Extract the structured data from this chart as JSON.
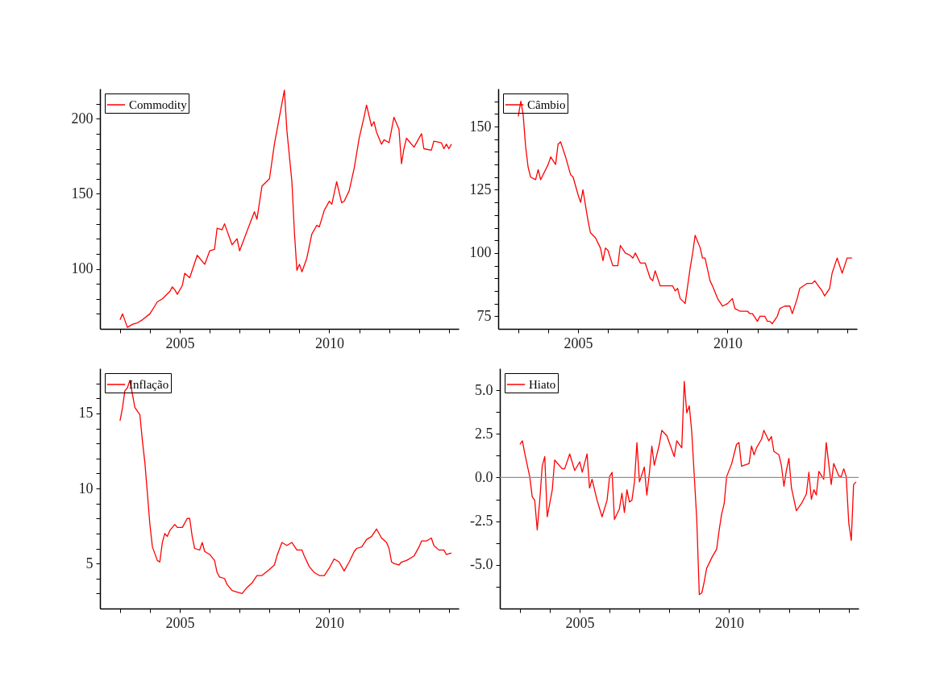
{
  "chart_data": [
    {
      "type": "line",
      "legend": "top left",
      "xlim": [
        "2002-05",
        "2014-05"
      ],
      "ylim": [
        60,
        220
      ],
      "xticks": [
        {
          "value": "2003",
          "label": null
        },
        {
          "value": "2004",
          "label": null
        },
        "2005",
        {
          "value": "2006",
          "label": null
        },
        {
          "value": "2007",
          "label": null
        },
        {
          "value": "2008",
          "label": null
        },
        {
          "value": "2009",
          "label": null
        },
        "2010",
        {
          "value": "2011",
          "label": null
        },
        {
          "value": "2012",
          "label": null
        },
        {
          "value": "2013",
          "label": null
        },
        {
          "value": "2014",
          "label": null
        }
      ],
      "yticks": [
        {
          "value": 70,
          "label": null
        },
        {
          "value": 80,
          "label": null
        },
        {
          "value": 90,
          "label": null
        },
        100,
        {
          "value": 110,
          "label": null
        },
        {
          "value": 120,
          "label": null
        },
        {
          "value": 130,
          "label": null
        },
        {
          "value": 140,
          "label": null
        },
        150,
        {
          "value": 160,
          "label": null
        },
        {
          "value": 170,
          "label": null
        },
        {
          "value": 180,
          "label": null
        },
        {
          "value": 190,
          "label": null
        },
        200,
        {
          "value": 210,
          "label": null
        }
      ],
      "x": [
        "2003-01",
        "2003-02",
        "2003-04",
        "2003-06",
        "2003-08",
        "2003-10",
        "2004-01",
        "2004-04",
        "2004-06",
        "2004-09",
        "2004-10",
        "2004-11",
        "2004-12",
        "2005-02",
        "2005-03",
        "2005-05",
        "2005-08",
        "2005-11",
        "2006-01",
        "2006-03",
        "2006-04",
        "2006-06",
        "2006-07",
        "2006-10",
        "2006-12",
        "2007-01",
        "2007-04",
        "2007-07",
        "2007-08",
        "2007-10",
        "2008-01",
        "2008-03",
        "2008-05",
        "2008-07",
        "2008-08",
        "2008-10",
        "2008-11",
        "2008-12",
        "2009-01",
        "2009-02",
        "2009-04",
        "2009-06",
        "2009-08",
        "2009-09",
        "2009-11",
        "2010-01",
        "2010-02",
        "2010-04",
        "2010-06",
        "2010-07",
        "2010-09",
        "2010-11",
        "2011-01",
        "2011-03",
        "2011-04",
        "2011-06",
        "2011-07",
        "2011-08",
        "2011-10",
        "2011-11",
        "2012-01",
        "2012-03",
        "2012-05",
        "2012-06",
        "2012-07",
        "2012-08",
        "2012-11",
        "2013-02",
        "2013-03",
        "2013-06",
        "2013-07",
        "2013-10",
        "2013-11",
        "2013-12",
        "2014-01",
        "2014-02"
      ],
      "series": [
        {
          "name": "Commodity",
          "color": "#ff0000",
          "values": [
            66,
            70,
            61,
            63,
            64,
            66,
            70,
            78,
            80,
            85,
            88,
            86,
            83,
            89,
            97,
            94,
            109,
            103,
            112,
            113,
            127,
            126,
            130,
            116,
            120,
            112,
            125,
            138,
            133,
            155,
            160,
            183,
            201,
            219,
            192,
            158,
            124,
            99,
            103,
            98,
            107,
            123,
            129,
            128,
            139,
            145,
            143,
            158,
            144,
            145,
            152,
            167,
            187,
            201,
            209,
            195,
            198,
            191,
            183,
            186,
            184,
            201,
            193,
            170,
            180,
            187,
            181,
            190,
            180,
            179,
            185,
            184,
            180,
            183,
            180,
            183
          ]
        }
      ]
    },
    {
      "type": "line",
      "legend": "top left",
      "xlim": [
        "2002-05",
        "2014-05"
      ],
      "ylim": [
        70,
        165
      ],
      "xticks": [
        {
          "value": "2003",
          "label": null
        },
        {
          "value": "2004",
          "label": null
        },
        "2005",
        {
          "value": "2006",
          "label": null
        },
        {
          "value": "2007",
          "label": null
        },
        {
          "value": "2008",
          "label": null
        },
        {
          "value": "2009",
          "label": null
        },
        "2010",
        {
          "value": "2011",
          "label": null
        },
        {
          "value": "2012",
          "label": null
        },
        {
          "value": "2013",
          "label": null
        },
        {
          "value": "2014",
          "label": null
        }
      ],
      "yticks": [
        75,
        {
          "value": 80,
          "label": null
        },
        {
          "value": 85,
          "label": null
        },
        {
          "value": 90,
          "label": null
        },
        {
          "value": 95,
          "label": null
        },
        100,
        {
          "value": 105,
          "label": null
        },
        {
          "value": 110,
          "label": null
        },
        {
          "value": 115,
          "label": null
        },
        {
          "value": 120,
          "label": null
        },
        125,
        {
          "value": 130,
          "label": null
        },
        {
          "value": 135,
          "label": null
        },
        {
          "value": 140,
          "label": null
        },
        {
          "value": 145,
          "label": null
        },
        150,
        {
          "value": 155,
          "label": null
        },
        {
          "value": 160,
          "label": null
        }
      ],
      "x": [
        "2003-01",
        "2003-02",
        "2003-03",
        "2003-04",
        "2003-05",
        "2003-06",
        "2003-08",
        "2003-09",
        "2003-10",
        "2004-01",
        "2004-02",
        "2004-04",
        "2004-05",
        "2004-06",
        "2004-08",
        "2004-10",
        "2004-11",
        "2005-01",
        "2005-02",
        "2005-03",
        "2005-05",
        "2005-06",
        "2005-08",
        "2005-10",
        "2005-11",
        "2005-12",
        "2006-01",
        "2006-03",
        "2006-05",
        "2006-06",
        "2006-08",
        "2006-10",
        "2006-11",
        "2006-12",
        "2007-02",
        "2007-04",
        "2007-06",
        "2007-07",
        "2007-08",
        "2007-10",
        "2007-12",
        "2008-03",
        "2008-04",
        "2008-05",
        "2008-06",
        "2008-08",
        "2008-10",
        "2008-11",
        "2008-12",
        "2009-02",
        "2009-03",
        "2009-04",
        "2009-06",
        "2009-07",
        "2009-09",
        "2009-11",
        "2010-01",
        "2010-03",
        "2010-04",
        "2010-06",
        "2010-09",
        "2010-10",
        "2010-11",
        "2011-01",
        "2011-02",
        "2011-04",
        "2011-05",
        "2011-06",
        "2011-07",
        "2011-09",
        "2011-10",
        "2011-12",
        "2012-02",
        "2012-03",
        "2012-05",
        "2012-06",
        "2012-09",
        "2012-11",
        "2012-12",
        "2013-03",
        "2013-04",
        "2013-06",
        "2013-07",
        "2013-09",
        "2013-11",
        "2014-01",
        "2014-03"
      ],
      "series": [
        {
          "name": "Câmbio",
          "color": "#ff0000",
          "values": [
            154,
            160,
            155,
            142,
            134,
            130,
            129,
            133,
            129,
            135,
            138,
            135,
            143,
            144,
            138,
            131,
            130,
            123,
            120,
            125,
            113,
            108,
            106,
            102,
            97,
            102,
            101,
            95,
            95,
            103,
            100,
            99,
            98,
            100,
            96,
            96,
            90,
            89,
            93,
            87,
            87,
            87,
            85,
            86,
            82,
            80,
            94,
            100,
            107,
            102,
            98,
            98,
            89,
            87,
            82,
            79,
            80,
            82,
            78,
            77,
            77,
            76,
            76,
            73,
            75,
            75,
            73,
            73,
            72,
            75,
            78,
            79,
            79,
            76,
            82,
            86,
            88,
            88,
            89,
            85,
            83,
            86,
            92,
            98,
            92,
            98,
            98
          ]
        }
      ]
    },
    {
      "type": "line",
      "legend": "top left",
      "xlim": [
        "2002-05",
        "2014-05"
      ],
      "ylim": [
        2,
        18
      ],
      "xticks": [
        {
          "value": "2003",
          "label": null
        },
        {
          "value": "2004",
          "label": null
        },
        "2005",
        {
          "value": "2006",
          "label": null
        },
        {
          "value": "2007",
          "label": null
        },
        {
          "value": "2008",
          "label": null
        },
        {
          "value": "2009",
          "label": null
        },
        "2010",
        {
          "value": "2011",
          "label": null
        },
        {
          "value": "2012",
          "label": null
        },
        {
          "value": "2013",
          "label": null
        },
        {
          "value": "2014",
          "label": null
        }
      ],
      "yticks": [
        {
          "value": 3,
          "label": null
        },
        {
          "value": 4,
          "label": null
        },
        5,
        {
          "value": 6,
          "label": null
        },
        {
          "value": 7,
          "label": null
        },
        {
          "value": 8,
          "label": null
        },
        {
          "value": 9,
          "label": null
        },
        10,
        {
          "value": 11,
          "label": null
        },
        {
          "value": 12,
          "label": null
        },
        {
          "value": 13,
          "label": null
        },
        {
          "value": 14,
          "label": null
        },
        15,
        {
          "value": 16,
          "label": null
        },
        {
          "value": 17,
          "label": null
        }
      ],
      "x": [
        "2003-01",
        "2003-02",
        "2003-03",
        "2003-04",
        "2003-05",
        "2003-06",
        "2003-07",
        "2003-09",
        "2003-10",
        "2003-11",
        "2003-12",
        "2004-01",
        "2004-02",
        "2004-04",
        "2004-05",
        "2004-06",
        "2004-07",
        "2004-08",
        "2004-09",
        "2004-11",
        "2004-12",
        "2005-02",
        "2005-04",
        "2005-05",
        "2005-06",
        "2005-07",
        "2005-09",
        "2005-10",
        "2005-11",
        "2006-01",
        "2006-03",
        "2006-04",
        "2006-05",
        "2006-07",
        "2006-08",
        "2006-10",
        "2006-12",
        "2007-02",
        "2007-04",
        "2007-06",
        "2007-08",
        "2007-10",
        "2008-01",
        "2008-03",
        "2008-04",
        "2008-06",
        "2008-08",
        "2008-10",
        "2008-12",
        "2009-02",
        "2009-03",
        "2009-05",
        "2009-07",
        "2009-09",
        "2009-11",
        "2010-01",
        "2010-03",
        "2010-05",
        "2010-07",
        "2010-09",
        "2010-11",
        "2010-12",
        "2011-02",
        "2011-04",
        "2011-06",
        "2011-08",
        "2011-10",
        "2011-12",
        "2012-01",
        "2012-02",
        "2012-03",
        "2012-05",
        "2012-06",
        "2012-08",
        "2012-11",
        "2013-01",
        "2013-02",
        "2013-04",
        "2013-06",
        "2013-07",
        "2013-09",
        "2013-11",
        "2013-12",
        "2014-02"
      ],
      "series": [
        {
          "name": "Inflação",
          "color": "#ff0000",
          "values": [
            14.5,
            15.4,
            16.5,
            16.7,
            17.2,
            16.3,
            15.4,
            14.9,
            13.2,
            11.7,
            9.7,
            7.6,
            6.1,
            5.2,
            5.1,
            6.4,
            7.0,
            6.8,
            7.2,
            7.6,
            7.4,
            7.4,
            8.0,
            8.0,
            6.8,
            6.0,
            5.9,
            6.4,
            5.8,
            5.6,
            5.2,
            4.4,
            4.1,
            4.0,
            3.6,
            3.2,
            3.1,
            3.0,
            3.4,
            3.7,
            4.2,
            4.2,
            4.6,
            4.9,
            5.5,
            6.4,
            6.2,
            6.4,
            5.9,
            5.9,
            5.5,
            4.8,
            4.4,
            4.2,
            4.2,
            4.7,
            5.3,
            5.1,
            4.5,
            5.1,
            5.8,
            6.0,
            6.1,
            6.6,
            6.8,
            7.3,
            6.7,
            6.4,
            6.0,
            5.1,
            5.0,
            4.9,
            5.1,
            5.2,
            5.5,
            6.1,
            6.5,
            6.5,
            6.7,
            6.2,
            5.9,
            5.9,
            5.6,
            5.7
          ]
        }
      ]
    },
    {
      "type": "line",
      "legend": "top left",
      "xlim": [
        "2002-05",
        "2014-05"
      ],
      "ylim": [
        -7.5,
        6.25
      ],
      "xticks": [
        {
          "value": "2003",
          "label": null
        },
        {
          "value": "2004",
          "label": null
        },
        "2005",
        {
          "value": "2006",
          "label": null
        },
        {
          "value": "2007",
          "label": null
        },
        {
          "value": "2008",
          "label": null
        },
        {
          "value": "2009",
          "label": null
        },
        "2010",
        {
          "value": "2011",
          "label": null
        },
        {
          "value": "2012",
          "label": null
        },
        {
          "value": "2013",
          "label": null
        },
        {
          "value": "2014",
          "label": null
        }
      ],
      "yticks": [
        {
          "value": -6.25,
          "label": null
        },
        {
          "value": -5,
          "label": "-5.0"
        },
        {
          "value": -3.75,
          "label": null
        },
        -2.5,
        {
          "value": -1.25,
          "label": null
        },
        {
          "value": 0,
          "label": "0.0"
        },
        {
          "value": 1.25,
          "label": null
        },
        2.5,
        {
          "value": 3.75,
          "label": null
        },
        {
          "value": 5,
          "label": "5.0"
        }
      ],
      "ref_lines": [
        {
          "axis": "y",
          "value": 0,
          "color": "#909090"
        }
      ],
      "x": [
        "2003-01",
        "2003-02",
        "2003-03",
        "2003-05",
        "2003-06",
        "2003-07",
        "2003-08",
        "2003-09",
        "2003-10",
        "2003-11",
        "2003-12",
        "2004-02",
        "2004-03",
        "2004-06",
        "2004-07",
        "2004-09",
        "2004-11",
        "2005-01",
        "2005-02",
        "2005-04",
        "2005-05",
        "2005-06",
        "2005-08",
        "2005-10",
        "2005-12",
        "2006-01",
        "2006-02",
        "2006-03",
        "2006-05",
        "2006-06",
        "2006-07",
        "2006-08",
        "2006-09",
        "2006-10",
        "2006-11",
        "2006-12",
        "2007-01",
        "2007-03",
        "2007-04",
        "2007-05",
        "2007-06",
        "2007-07",
        "2007-09",
        "2007-10",
        "2007-12",
        "2008-03",
        "2008-04",
        "2008-06",
        "2008-07",
        "2008-08",
        "2008-09",
        "2008-10",
        "2008-12",
        "2009-01",
        "2009-02",
        "2009-03",
        "2009-04",
        "2009-06",
        "2009-08",
        "2009-09",
        "2009-10",
        "2009-11",
        "2009-12",
        "2010-02",
        "2010-04",
        "2010-05",
        "2010-06",
        "2010-09",
        "2010-10",
        "2010-11",
        "2010-12",
        "2011-02",
        "2011-03",
        "2011-05",
        "2011-06",
        "2011-07",
        "2011-09",
        "2011-10",
        "2011-11",
        "2011-12",
        "2012-01",
        "2012-02",
        "2012-04",
        "2012-06",
        "2012-08",
        "2012-09",
        "2012-10",
        "2012-11",
        "2012-12",
        "2013-01",
        "2013-03",
        "2013-04",
        "2013-06",
        "2013-07",
        "2013-09",
        "2013-10",
        "2013-11",
        "2013-12",
        "2014-01",
        "2014-02",
        "2014-03",
        "2014-04"
      ],
      "series": [
        {
          "name": "Hiato",
          "color": "#ff0000",
          "values": [
            1.9,
            2.1,
            1.4,
            0.05,
            -1.1,
            -1.3,
            -3.0,
            -1.3,
            0.65,
            1.2,
            -2.25,
            -0.7,
            1.0,
            0.5,
            0.5,
            1.35,
            0.4,
            0.9,
            0.3,
            1.35,
            -0.6,
            -0.1,
            -1.3,
            -2.25,
            -1.3,
            0.05,
            0.3,
            -2.4,
            -1.8,
            -0.9,
            -2.0,
            -0.7,
            -1.4,
            -1.3,
            -0.25,
            2.0,
            -0.25,
            0.6,
            -1.0,
            0.2,
            1.8,
            0.7,
            1.9,
            2.7,
            2.4,
            1.2,
            2.1,
            1.7,
            5.5,
            3.7,
            4.1,
            2.6,
            -2.4,
            -6.7,
            -6.6,
            -6.0,
            -5.2,
            -4.6,
            -4.1,
            -3.0,
            -2.1,
            -1.5,
            0.05,
            0.8,
            1.9,
            2.0,
            0.65,
            0.8,
            1.8,
            1.3,
            1.7,
            2.2,
            2.7,
            2.1,
            2.35,
            1.5,
            1.3,
            0.7,
            -0.5,
            0.4,
            1.1,
            -0.6,
            -1.9,
            -1.5,
            -0.95,
            0.3,
            -1.25,
            -0.7,
            -1.0,
            0.35,
            -0.1,
            2.0,
            -0.4,
            0.8,
            0.1,
            0.05,
            0.5,
            0.05,
            -2.6,
            -3.6,
            -0.4,
            -0.25
          ]
        }
      ]
    }
  ]
}
